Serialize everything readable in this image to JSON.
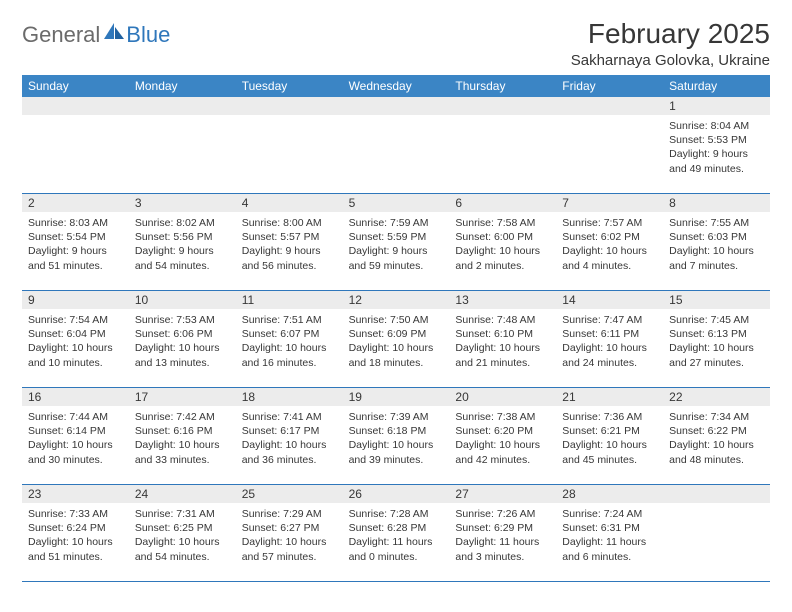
{
  "brand": {
    "part1": "General",
    "part2": "Blue"
  },
  "title": "February 2025",
  "location": "Sakharnaya Golovka, Ukraine",
  "colors": {
    "header_bg": "#3b85c5",
    "header_text": "#ffffff",
    "daynum_bg": "#ececec",
    "text": "#373737",
    "rule": "#2f77bb",
    "logo_gray": "#6b6b6b",
    "logo_blue": "#2f77bb"
  },
  "dayNames": [
    "Sunday",
    "Monday",
    "Tuesday",
    "Wednesday",
    "Thursday",
    "Friday",
    "Saturday"
  ],
  "weeks": [
    [
      {
        "n": "",
        "sr": "",
        "ss": "",
        "dl": ""
      },
      {
        "n": "",
        "sr": "",
        "ss": "",
        "dl": ""
      },
      {
        "n": "",
        "sr": "",
        "ss": "",
        "dl": ""
      },
      {
        "n": "",
        "sr": "",
        "ss": "",
        "dl": ""
      },
      {
        "n": "",
        "sr": "",
        "ss": "",
        "dl": ""
      },
      {
        "n": "",
        "sr": "",
        "ss": "",
        "dl": ""
      },
      {
        "n": "1",
        "sr": "8:04 AM",
        "ss": "5:53 PM",
        "dl": "9 hours and 49 minutes."
      }
    ],
    [
      {
        "n": "2",
        "sr": "8:03 AM",
        "ss": "5:54 PM",
        "dl": "9 hours and 51 minutes."
      },
      {
        "n": "3",
        "sr": "8:02 AM",
        "ss": "5:56 PM",
        "dl": "9 hours and 54 minutes."
      },
      {
        "n": "4",
        "sr": "8:00 AM",
        "ss": "5:57 PM",
        "dl": "9 hours and 56 minutes."
      },
      {
        "n": "5",
        "sr": "7:59 AM",
        "ss": "5:59 PM",
        "dl": "9 hours and 59 minutes."
      },
      {
        "n": "6",
        "sr": "7:58 AM",
        "ss": "6:00 PM",
        "dl": "10 hours and 2 minutes."
      },
      {
        "n": "7",
        "sr": "7:57 AM",
        "ss": "6:02 PM",
        "dl": "10 hours and 4 minutes."
      },
      {
        "n": "8",
        "sr": "7:55 AM",
        "ss": "6:03 PM",
        "dl": "10 hours and 7 minutes."
      }
    ],
    [
      {
        "n": "9",
        "sr": "7:54 AM",
        "ss": "6:04 PM",
        "dl": "10 hours and 10 minutes."
      },
      {
        "n": "10",
        "sr": "7:53 AM",
        "ss": "6:06 PM",
        "dl": "10 hours and 13 minutes."
      },
      {
        "n": "11",
        "sr": "7:51 AM",
        "ss": "6:07 PM",
        "dl": "10 hours and 16 minutes."
      },
      {
        "n": "12",
        "sr": "7:50 AM",
        "ss": "6:09 PM",
        "dl": "10 hours and 18 minutes."
      },
      {
        "n": "13",
        "sr": "7:48 AM",
        "ss": "6:10 PM",
        "dl": "10 hours and 21 minutes."
      },
      {
        "n": "14",
        "sr": "7:47 AM",
        "ss": "6:11 PM",
        "dl": "10 hours and 24 minutes."
      },
      {
        "n": "15",
        "sr": "7:45 AM",
        "ss": "6:13 PM",
        "dl": "10 hours and 27 minutes."
      }
    ],
    [
      {
        "n": "16",
        "sr": "7:44 AM",
        "ss": "6:14 PM",
        "dl": "10 hours and 30 minutes."
      },
      {
        "n": "17",
        "sr": "7:42 AM",
        "ss": "6:16 PM",
        "dl": "10 hours and 33 minutes."
      },
      {
        "n": "18",
        "sr": "7:41 AM",
        "ss": "6:17 PM",
        "dl": "10 hours and 36 minutes."
      },
      {
        "n": "19",
        "sr": "7:39 AM",
        "ss": "6:18 PM",
        "dl": "10 hours and 39 minutes."
      },
      {
        "n": "20",
        "sr": "7:38 AM",
        "ss": "6:20 PM",
        "dl": "10 hours and 42 minutes."
      },
      {
        "n": "21",
        "sr": "7:36 AM",
        "ss": "6:21 PM",
        "dl": "10 hours and 45 minutes."
      },
      {
        "n": "22",
        "sr": "7:34 AM",
        "ss": "6:22 PM",
        "dl": "10 hours and 48 minutes."
      }
    ],
    [
      {
        "n": "23",
        "sr": "7:33 AM",
        "ss": "6:24 PM",
        "dl": "10 hours and 51 minutes."
      },
      {
        "n": "24",
        "sr": "7:31 AM",
        "ss": "6:25 PM",
        "dl": "10 hours and 54 minutes."
      },
      {
        "n": "25",
        "sr": "7:29 AM",
        "ss": "6:27 PM",
        "dl": "10 hours and 57 minutes."
      },
      {
        "n": "26",
        "sr": "7:28 AM",
        "ss": "6:28 PM",
        "dl": "11 hours and 0 minutes."
      },
      {
        "n": "27",
        "sr": "7:26 AM",
        "ss": "6:29 PM",
        "dl": "11 hours and 3 minutes."
      },
      {
        "n": "28",
        "sr": "7:24 AM",
        "ss": "6:31 PM",
        "dl": "11 hours and 6 minutes."
      },
      {
        "n": "",
        "sr": "",
        "ss": "",
        "dl": ""
      }
    ]
  ],
  "labels": {
    "sunrise": "Sunrise:",
    "sunset": "Sunset:",
    "daylight": "Daylight:"
  }
}
